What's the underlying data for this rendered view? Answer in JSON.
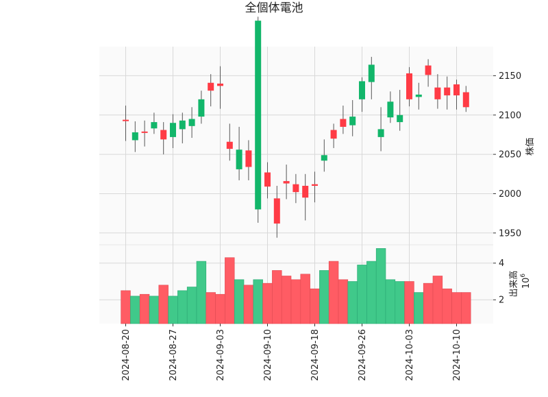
{
  "colors": {
    "up": "#ff3b45",
    "down": "#12b66a",
    "up_volume": "#ff5c64",
    "down_volume": "#40c98a",
    "wick": "#555555",
    "grid": "#d8d8d8",
    "panel": "#fafafa"
  },
  "chart_data": {
    "type": "candlestick",
    "title": "全個体電池",
    "ylabel_price": "株価",
    "ylabel_volume": "出来高",
    "volume_multiplier_label": "10",
    "volume_multiplier_exponent": "6",
    "x_tick_labels": [
      "2024-08-20",
      "2024-08-27",
      "2024-09-03",
      "2024-09-10",
      "2024-09-18",
      "2024-09-26",
      "2024-10-03",
      "2024-10-10"
    ],
    "x_tick_indices": [
      0,
      5,
      10,
      15,
      20,
      25,
      30,
      35
    ],
    "price_ticks": [
      1950,
      2000,
      2050,
      2100,
      2150
    ],
    "price_range": [
      1935,
      2187
    ],
    "volume_ticks": [
      2,
      4
    ],
    "volume_range": [
      0.7,
      5.0
    ],
    "grid": true,
    "candles": [
      {
        "o": 2094,
        "h": 2112,
        "l": 2067,
        "c": 2094,
        "v": 2.5
      },
      {
        "o": 2078,
        "h": 2092,
        "l": 2053,
        "c": 2068,
        "v": 2.2
      },
      {
        "o": 2079,
        "h": 2093,
        "l": 2060,
        "c": 2079,
        "v": 2.3
      },
      {
        "o": 2091,
        "h": 2103,
        "l": 2076,
        "c": 2083,
        "v": 2.2
      },
      {
        "o": 2069,
        "h": 2091,
        "l": 2050,
        "c": 2081,
        "v": 2.8
      },
      {
        "o": 2090,
        "h": 2101,
        "l": 2058,
        "c": 2072,
        "v": 2.2
      },
      {
        "o": 2093,
        "h": 2103,
        "l": 2064,
        "c": 2082,
        "v": 2.5
      },
      {
        "o": 2095,
        "h": 2110,
        "l": 2071,
        "c": 2086,
        "v": 2.7
      },
      {
        "o": 2120,
        "h": 2131,
        "l": 2089,
        "c": 2098,
        "v": 4.1
      },
      {
        "o": 2131,
        "h": 2152,
        "l": 2111,
        "c": 2141,
        "v": 2.4
      },
      {
        "o": 2137,
        "h": 2162,
        "l": 2108,
        "c": 2140,
        "v": 2.3
      },
      {
        "o": 2057,
        "h": 2089,
        "l": 2042,
        "c": 2066,
        "v": 4.3
      },
      {
        "o": 2056,
        "h": 2085,
        "l": 2017,
        "c": 2031,
        "v": 3.1
      },
      {
        "o": 2034,
        "h": 2068,
        "l": 2017,
        "c": 2055,
        "v": 2.8
      },
      {
        "o": 2220,
        "h": 2225,
        "l": 1963,
        "c": 1980,
        "v": 3.1
      },
      {
        "o": 2009,
        "h": 2040,
        "l": 1994,
        "c": 2027,
        "v": 2.9
      },
      {
        "o": 1962,
        "h": 2010,
        "l": 1944,
        "c": 1994,
        "v": 3.6
      },
      {
        "o": 2013,
        "h": 2037,
        "l": 1993,
        "c": 2016,
        "v": 3.3
      },
      {
        "o": 2002,
        "h": 2025,
        "l": 1988,
        "c": 2012,
        "v": 3.1
      },
      {
        "o": 1995,
        "h": 2025,
        "l": 1966,
        "c": 2010,
        "v": 3.4
      },
      {
        "o": 2010,
        "h": 2028,
        "l": 1989,
        "c": 2012,
        "v": 2.6
      },
      {
        "o": 2049,
        "h": 2069,
        "l": 2028,
        "c": 2042,
        "v": 3.6
      },
      {
        "o": 2070,
        "h": 2089,
        "l": 2058,
        "c": 2081,
        "v": 4.1
      },
      {
        "o": 2085,
        "h": 2112,
        "l": 2076,
        "c": 2095,
        "v": 3.1
      },
      {
        "o": 2098,
        "h": 2119,
        "l": 2073,
        "c": 2087,
        "v": 3.0
      },
      {
        "o": 2143,
        "h": 2148,
        "l": 2104,
        "c": 2120,
        "v": 3.9
      },
      {
        "o": 2164,
        "h": 2174,
        "l": 2120,
        "c": 2142,
        "v": 4.1
      },
      {
        "o": 2082,
        "h": 2110,
        "l": 2054,
        "c": 2072,
        "v": 4.8
      },
      {
        "o": 2117,
        "h": 2130,
        "l": 2090,
        "c": 2097,
        "v": 3.1
      },
      {
        "o": 2100,
        "h": 2132,
        "l": 2080,
        "c": 2091,
        "v": 3.0
      },
      {
        "o": 2120,
        "h": 2161,
        "l": 2111,
        "c": 2153,
        "v": 3.0
      },
      {
        "o": 2126,
        "h": 2141,
        "l": 2107,
        "c": 2123,
        "v": 2.4
      },
      {
        "o": 2151,
        "h": 2171,
        "l": 2136,
        "c": 2163,
        "v": 2.9
      },
      {
        "o": 2120,
        "h": 2152,
        "l": 2108,
        "c": 2135,
        "v": 3.3
      },
      {
        "o": 2125,
        "h": 2149,
        "l": 2107,
        "c": 2135,
        "v": 2.6
      },
      {
        "o": 2125,
        "h": 2145,
        "l": 2107,
        "c": 2139,
        "v": 2.4
      },
      {
        "o": 2110,
        "h": 2137,
        "l": 2104,
        "c": 2129,
        "v": 2.4
      }
    ]
  }
}
